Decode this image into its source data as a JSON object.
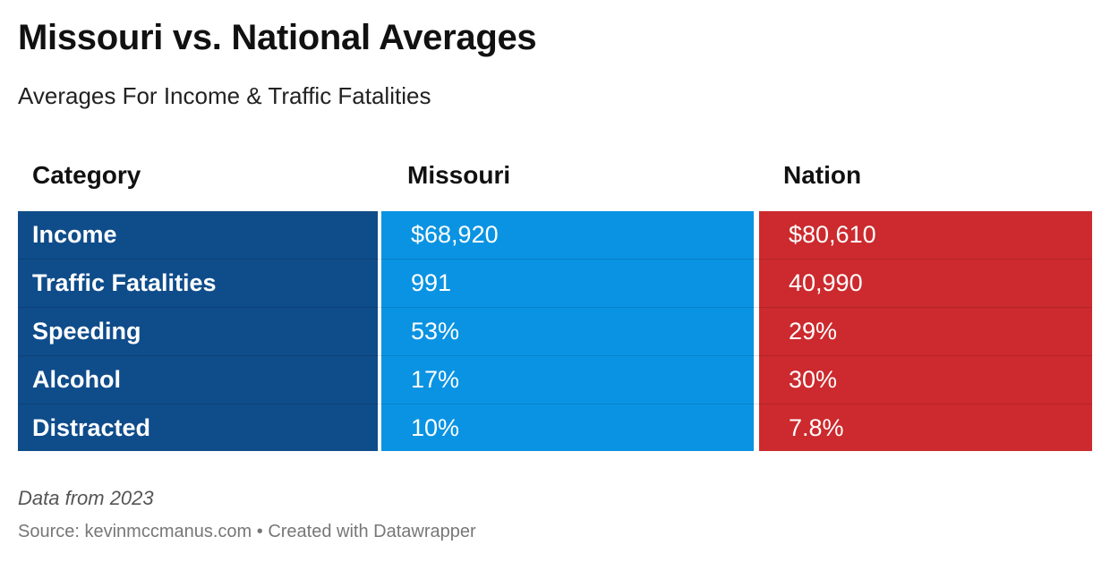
{
  "title": "Missouri vs. National Averages",
  "subtitle": "Averages For Income & Traffic Fatalities",
  "chart_data": {
    "type": "table",
    "columns": [
      "Category",
      "Missouri",
      "Nation"
    ],
    "rows": [
      {
        "category": "Income",
        "missouri": "$68,920",
        "nation": "$80,610"
      },
      {
        "category": "Traffic Fatalities",
        "missouri": "991",
        "nation": "40,990"
      },
      {
        "category": "Speeding",
        "missouri": "53%",
        "nation": "29%"
      },
      {
        "category": "Alcohol",
        "missouri": "17%",
        "nation": "30%"
      },
      {
        "category": "Distracted",
        "missouri": "10%",
        "nation": "7.8%"
      }
    ]
  },
  "colors": {
    "category": "#0f4c8a",
    "missouri": "#0a93e2",
    "nation": "#cc2a2e"
  },
  "note": "Data from 2023",
  "source": "Source: kevinmccmanus.com • Created with Datawrapper"
}
